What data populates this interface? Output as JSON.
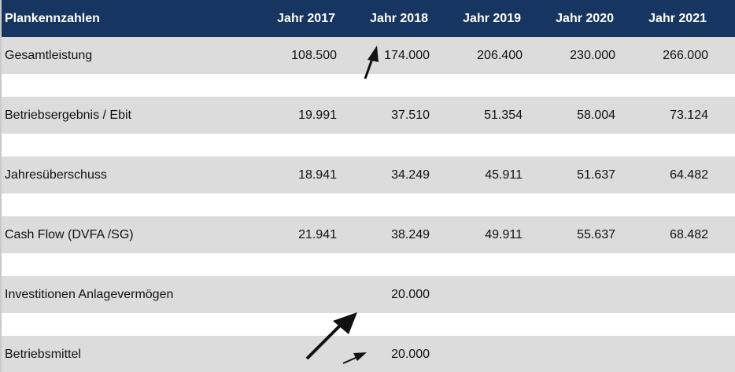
{
  "table": {
    "header": {
      "label": "Plankennzahlen",
      "years": [
        "Jahr 2017",
        "Jahr 2018",
        "Jahr 2019",
        "Jahr 2020",
        "Jahr 2021"
      ]
    },
    "rows": [
      {
        "label": "Gesamtleistung",
        "values": [
          "108.500",
          "174.000",
          "206.400",
          "230.000",
          "266.000"
        ]
      },
      {
        "label": "Betriebsergebnis / Ebit",
        "values": [
          "19.991",
          "37.510",
          "51.354",
          "58.004",
          "73.124"
        ]
      },
      {
        "label": "Jahresüberschuss",
        "values": [
          "18.941",
          "34.249",
          "45.911",
          "51.637",
          "64.482"
        ]
      },
      {
        "label": "Cash Flow (DVFA /SG)",
        "values": [
          "21.941",
          "38.249",
          "49.911",
          "55.637",
          "68.482"
        ]
      },
      {
        "label": "Investitionen Anlagevermögen",
        "values": [
          "",
          "20.000",
          "",
          "",
          ""
        ]
      },
      {
        "label": "Betriebsmittel",
        "values": [
          "",
          "20.000",
          "",
          "",
          ""
        ]
      }
    ]
  },
  "colors": {
    "header_bg": "#163560",
    "header_text": "#ffffff",
    "row_bg": "#dcdcdc",
    "spacer_bg": "#ffffff",
    "arrow": "#111111"
  },
  "annotations": [
    "arrow-icon",
    "arrow-icon",
    "arrow-icon"
  ]
}
